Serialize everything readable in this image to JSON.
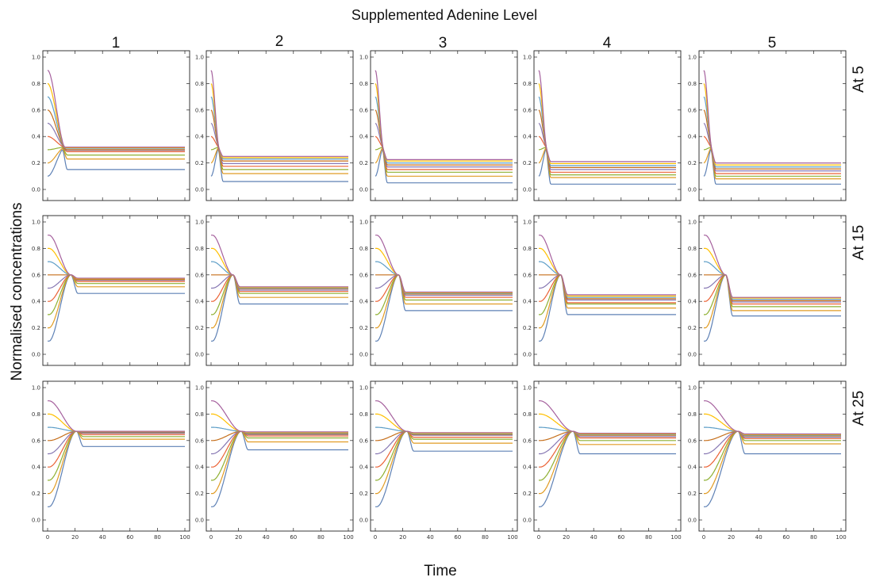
{
  "chart_data": {
    "type": "line",
    "title": "Supplemented Adenine Level",
    "xlabel": "Time",
    "ylabel": "Normalised concentrations",
    "column_labels": [
      "1",
      "2",
      "3",
      "4",
      "5"
    ],
    "row_labels": [
      "At 5",
      "At 15",
      "At 25"
    ],
    "xlim": [
      0,
      100
    ],
    "ylim": [
      0,
      1
    ],
    "x_ticks": [
      "0",
      "20",
      "40",
      "60",
      "80",
      "100"
    ],
    "y_ticks": [
      "0.0",
      "0.2",
      "0.4",
      "0.6",
      "0.8",
      "1.0"
    ],
    "initial_values": [
      0.1,
      0.2,
      0.3,
      0.4,
      0.5,
      0.6,
      0.7,
      0.8,
      0.9
    ],
    "series_colors": [
      "#5e81b5",
      "#e19c24",
      "#8fb032",
      "#eb6235",
      "#8778b3",
      "#c56e1a",
      "#5d9ec7",
      "#ffbf00",
      "#a5609d"
    ],
    "panels": [
      [
        {
          "switch_time": 13,
          "final": [
            0.15,
            0.23,
            0.26,
            0.285,
            0.295,
            0.3,
            0.31,
            0.315,
            0.32
          ]
        },
        {
          "switch_time": 6,
          "final": [
            0.06,
            0.12,
            0.15,
            0.175,
            0.195,
            0.215,
            0.23,
            0.24,
            0.25
          ]
        },
        {
          "switch_time": 6,
          "final": [
            0.05,
            0.1,
            0.13,
            0.15,
            0.17,
            0.185,
            0.2,
            0.215,
            0.225
          ]
        },
        {
          "switch_time": 6,
          "final": [
            0.04,
            0.09,
            0.11,
            0.13,
            0.15,
            0.165,
            0.18,
            0.195,
            0.21
          ]
        },
        {
          "switch_time": 6,
          "final": [
            0.04,
            0.08,
            0.1,
            0.12,
            0.14,
            0.155,
            0.17,
            0.185,
            0.2
          ]
        }
      ],
      [
        {
          "switch_time": 17,
          "final": [
            0.46,
            0.51,
            0.535,
            0.55,
            0.56,
            0.565,
            0.57,
            0.57,
            0.575
          ]
        },
        {
          "switch_time": 16,
          "final": [
            0.38,
            0.43,
            0.46,
            0.475,
            0.485,
            0.495,
            0.5,
            0.505,
            0.51
          ]
        },
        {
          "switch_time": 17,
          "final": [
            0.33,
            0.38,
            0.41,
            0.43,
            0.445,
            0.455,
            0.46,
            0.465,
            0.47
          ]
        },
        {
          "switch_time": 16,
          "final": [
            0.3,
            0.35,
            0.38,
            0.39,
            0.41,
            0.42,
            0.43,
            0.44,
            0.45
          ]
        },
        {
          "switch_time": 16,
          "final": [
            0.29,
            0.33,
            0.36,
            0.38,
            0.395,
            0.405,
            0.415,
            0.425,
            0.43
          ]
        }
      ],
      [
        {
          "switch_time": 21,
          "final": [
            0.555,
            0.61,
            0.63,
            0.645,
            0.655,
            0.66,
            0.665,
            0.668,
            0.67
          ]
        },
        {
          "switch_time": 22,
          "final": [
            0.53,
            0.59,
            0.62,
            0.635,
            0.645,
            0.65,
            0.655,
            0.66,
            0.665
          ]
        },
        {
          "switch_time": 23,
          "final": [
            0.52,
            0.58,
            0.61,
            0.625,
            0.64,
            0.645,
            0.65,
            0.655,
            0.66
          ]
        },
        {
          "switch_time": 25,
          "final": [
            0.5,
            0.57,
            0.6,
            0.62,
            0.63,
            0.64,
            0.645,
            0.65,
            0.655
          ]
        },
        {
          "switch_time": 25,
          "final": [
            0.5,
            0.575,
            0.6,
            0.615,
            0.625,
            0.635,
            0.64,
            0.645,
            0.65
          ]
        }
      ]
    ]
  }
}
